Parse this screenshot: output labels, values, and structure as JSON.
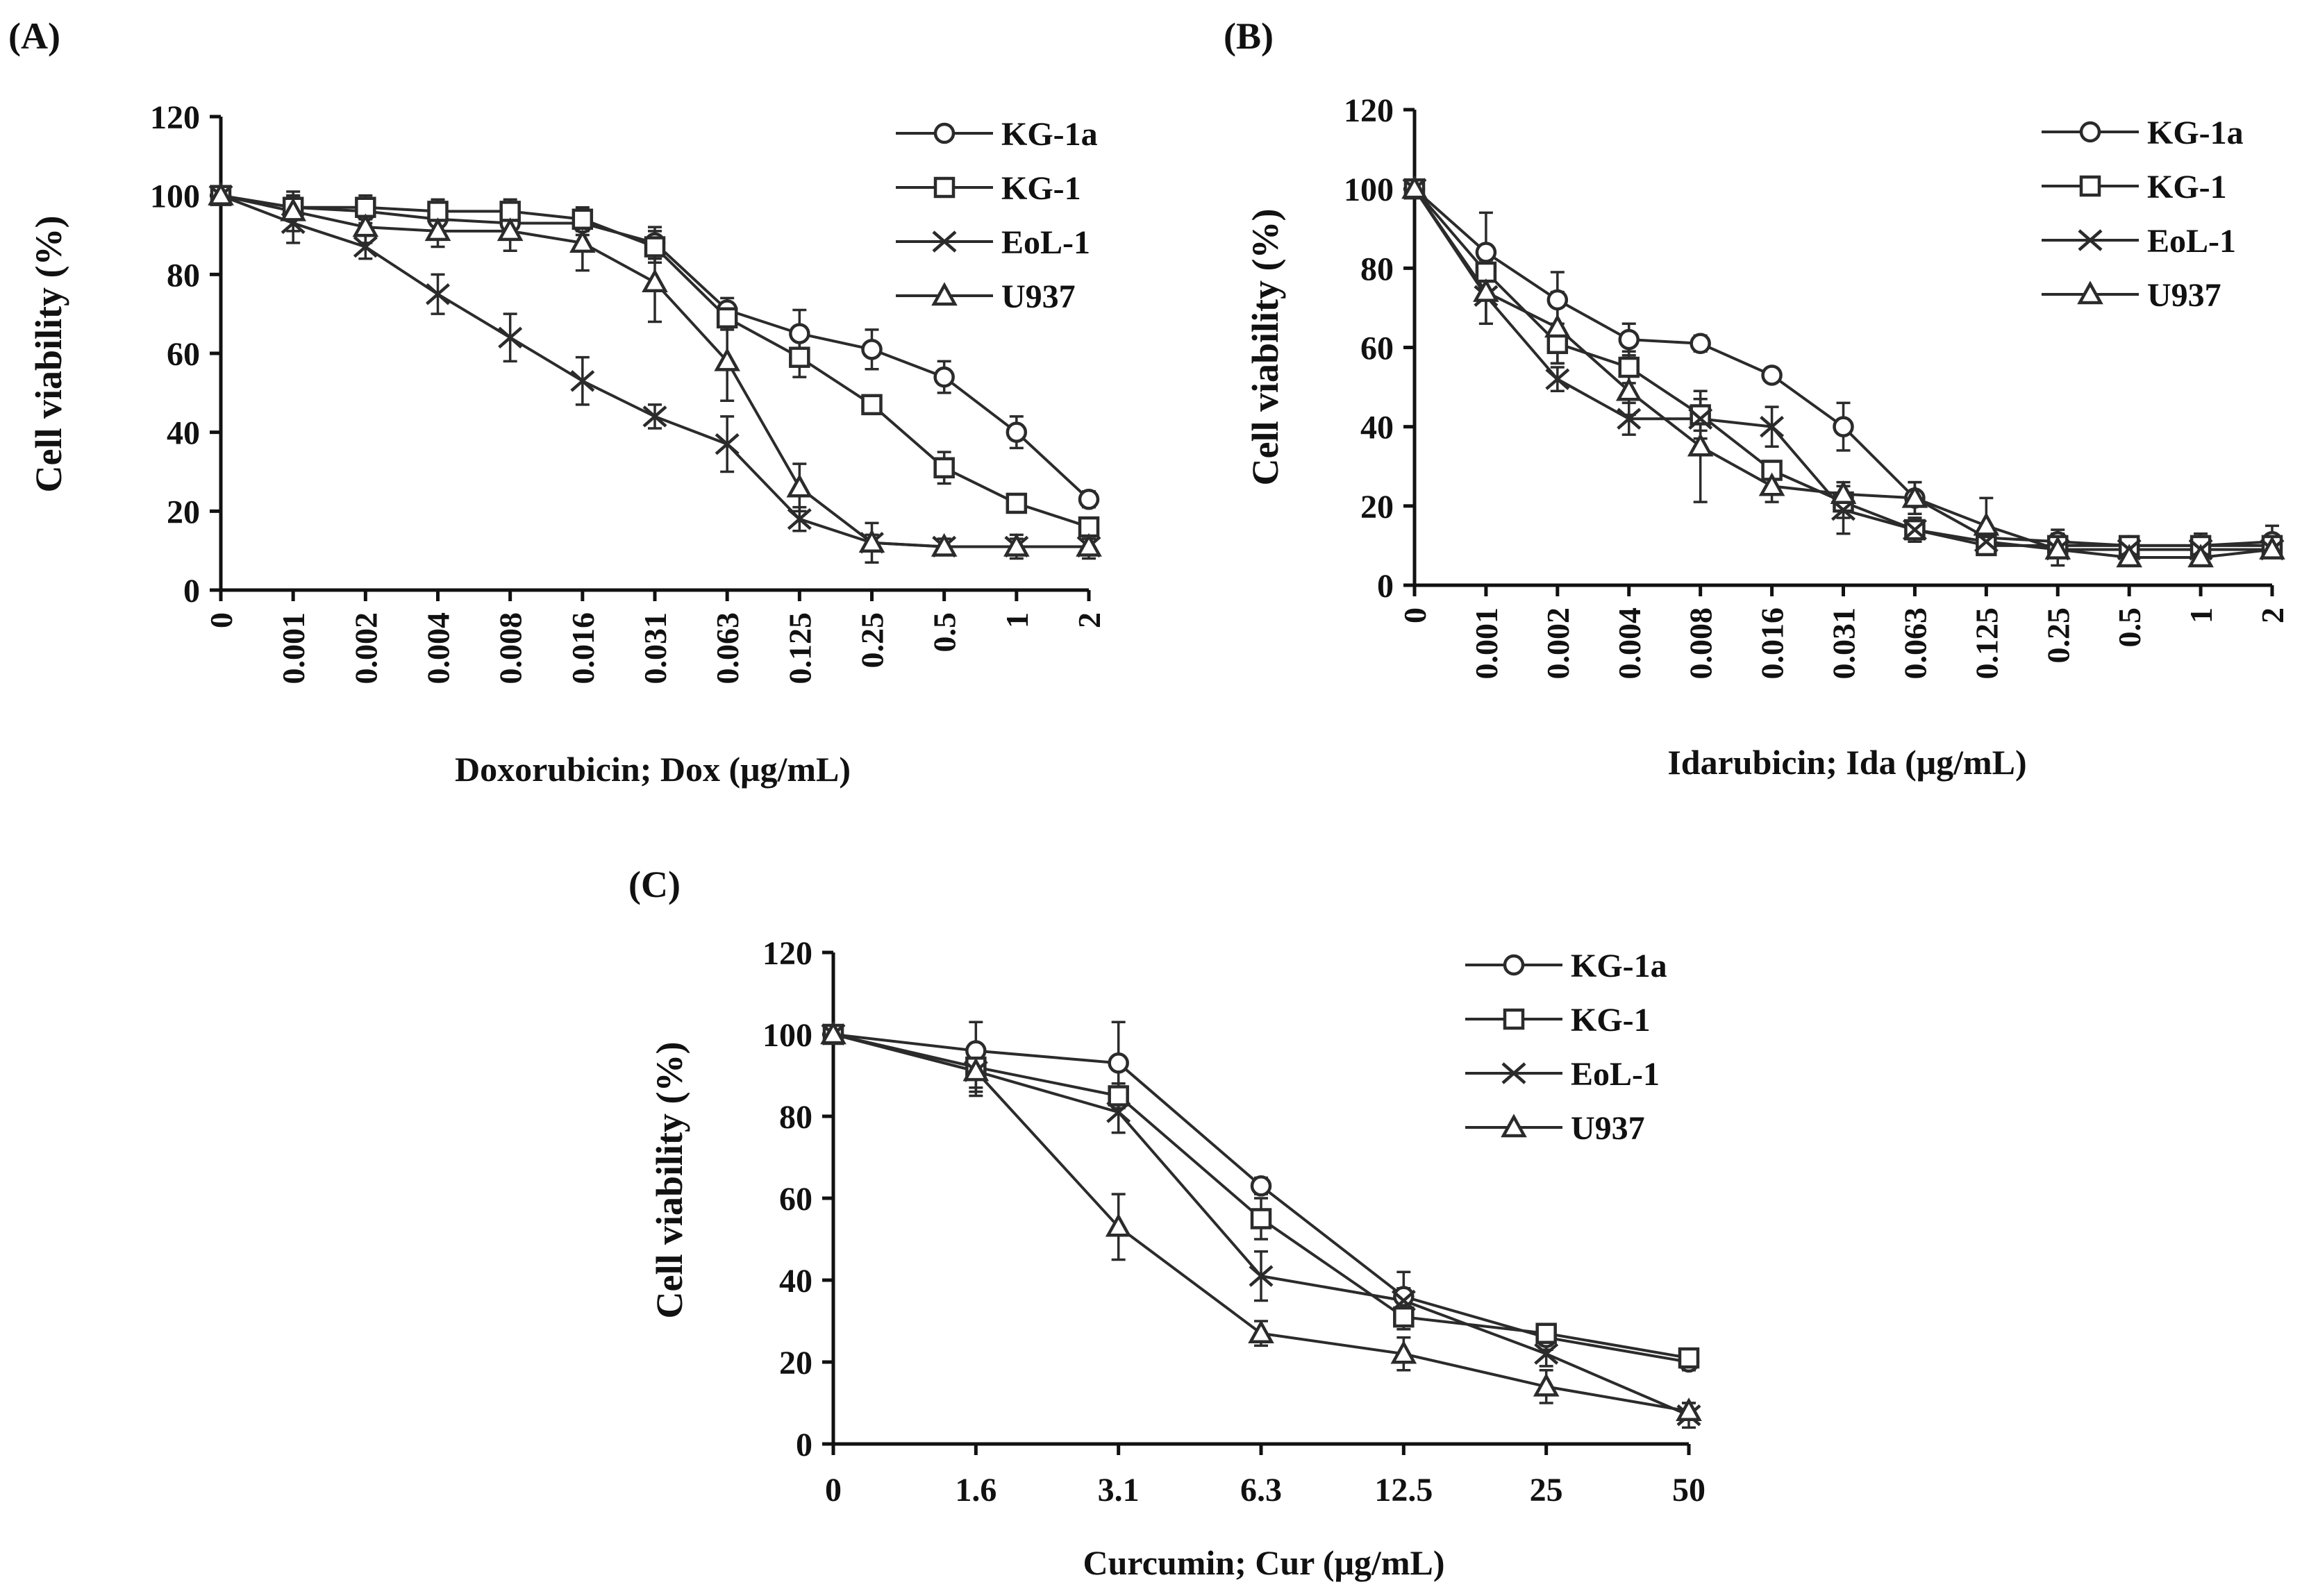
{
  "chart_data": [
    {
      "type": "line",
      "panel_label": "(A)",
      "xlabel": "Doxorubicin; Dox (μg/mL)",
      "ylabel": "Cell viability (%)",
      "categories": [
        "0",
        "0.001",
        "0.002",
        "0.004",
        "0.008",
        "0.016",
        "0.031",
        "0.063",
        "0.125",
        "0.25",
        "0.5",
        "1",
        "2"
      ],
      "x_tick_rotation": "vertical",
      "ylim": [
        0,
        120
      ],
      "yticks": [
        "0",
        "20",
        "40",
        "60",
        "80",
        "100",
        "120"
      ],
      "grid": false,
      "legend_position": "top-right",
      "series": [
        {
          "name": "KG-1a",
          "marker": "circle",
          "values": [
            100,
            97,
            96,
            94,
            93,
            93,
            88,
            71,
            65,
            61,
            54,
            40,
            23
          ],
          "errors": [
            2,
            3,
            3,
            3,
            3,
            3,
            4,
            3,
            6,
            5,
            4,
            4,
            2
          ]
        },
        {
          "name": "KG-1",
          "marker": "square",
          "values": [
            100,
            97,
            97,
            96,
            96,
            94,
            87,
            69,
            59,
            47,
            31,
            22,
            16
          ],
          "errors": [
            2,
            3,
            3,
            3,
            3,
            3,
            4,
            3,
            5,
            2,
            4,
            2,
            2
          ]
        },
        {
          "name": "EoL-1",
          "marker": "x",
          "values": [
            100,
            93,
            87,
            75,
            64,
            53,
            44,
            37,
            18,
            12,
            11,
            11,
            11
          ],
          "errors": [
            2,
            5,
            3,
            5,
            6,
            6,
            3,
            7,
            3,
            2,
            2,
            2,
            2
          ]
        },
        {
          "name": "U937",
          "marker": "triangle",
          "values": [
            100,
            96,
            92,
            91,
            91,
            88,
            78,
            58,
            26,
            12,
            11,
            11,
            11
          ],
          "errors": [
            2,
            5,
            4,
            4,
            5,
            7,
            10,
            10,
            6,
            5,
            2,
            3,
            3
          ]
        }
      ]
    },
    {
      "type": "line",
      "panel_label": "(B)",
      "xlabel": "Idarubicin; Ida (μg/mL)",
      "ylabel": "Cell viability (%)",
      "categories": [
        "0",
        "0.001",
        "0.002",
        "0.004",
        "0.008",
        "0.016",
        "0.031",
        "0.063",
        "0.125",
        "0.25",
        "0.5",
        "1",
        "2"
      ],
      "x_tick_rotation": "vertical",
      "ylim": [
        0,
        120
      ],
      "yticks": [
        "0",
        "20",
        "40",
        "60",
        "80",
        "100",
        "120"
      ],
      "grid": false,
      "legend_position": "top-right",
      "series": [
        {
          "name": "KG-1a",
          "marker": "circle",
          "values": [
            100,
            84,
            72,
            62,
            61,
            53,
            40,
            22,
            12,
            11,
            10,
            10,
            11
          ],
          "errors": [
            2,
            10,
            7,
            4,
            2,
            1,
            6,
            4,
            2,
            3,
            2,
            3,
            4
          ]
        },
        {
          "name": "KG-1",
          "marker": "square",
          "values": [
            100,
            79,
            61,
            55,
            43,
            29,
            21,
            14,
            10,
            10,
            10,
            10,
            10
          ],
          "errors": [
            2,
            6,
            5,
            4,
            4,
            2,
            4,
            3,
            2,
            2,
            2,
            2,
            2
          ]
        },
        {
          "name": "EoL-1",
          "marker": "x",
          "values": [
            100,
            73,
            52,
            42,
            42,
            40,
            19,
            14,
            11,
            9,
            9,
            9,
            9
          ],
          "errors": [
            2,
            7,
            3,
            4,
            5,
            5,
            6,
            3,
            2,
            2,
            2,
            2,
            2
          ]
        },
        {
          "name": "U937",
          "marker": "triangle",
          "values": [
            100,
            74,
            65,
            49,
            35,
            25,
            23,
            22,
            15,
            9,
            7,
            7,
            9
          ],
          "errors": [
            2,
            8,
            9,
            6,
            14,
            4,
            3,
            4,
            7,
            4,
            2,
            2,
            2
          ]
        }
      ]
    },
    {
      "type": "line",
      "panel_label": "(C)",
      "xlabel": "Curcumin; Cur (μg/mL)",
      "ylabel": "Cell viability (%)",
      "categories": [
        "0",
        "1.6",
        "3.1",
        "6.3",
        "12.5",
        "25",
        "50"
      ],
      "x_tick_rotation": "horizontal",
      "ylim": [
        0,
        120
      ],
      "yticks": [
        "0",
        "20",
        "40",
        "60",
        "80",
        "100",
        "120"
      ],
      "grid": false,
      "legend_position": "top-right",
      "series": [
        {
          "name": "KG-1a",
          "marker": "circle",
          "values": [
            100,
            96,
            93,
            63,
            36,
            26,
            20
          ],
          "errors": [
            2,
            7,
            10,
            2,
            6,
            3,
            2
          ]
        },
        {
          "name": "KG-1",
          "marker": "square",
          "values": [
            100,
            92,
            85,
            55,
            31,
            27,
            21
          ],
          "errors": [
            2,
            5,
            3,
            5,
            3,
            2,
            2
          ]
        },
        {
          "name": "EoL-1",
          "marker": "x",
          "values": [
            100,
            91,
            81,
            41,
            35,
            22,
            7
          ],
          "errors": [
            2,
            5,
            5,
            6,
            3,
            3,
            3
          ]
        },
        {
          "name": "U937",
          "marker": "triangle",
          "values": [
            100,
            91,
            53,
            27,
            22,
            14,
            8
          ],
          "errors": [
            2,
            6,
            8,
            3,
            4,
            4,
            2
          ]
        }
      ]
    }
  ]
}
